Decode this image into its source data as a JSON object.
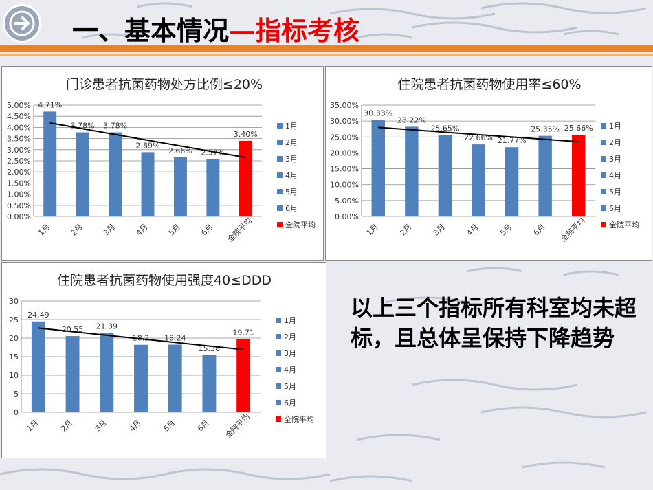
{
  "header": {
    "title_main": "一、基本情况",
    "title_accent": "—指标考核"
  },
  "nav": {
    "icon": "arrow-right-icon"
  },
  "summary_text": "以上三个指标所有科室均未超标，且总体呈保持下降趋势",
  "colors": {
    "bar": "#4f81bd",
    "avg_bar": "#ff0000",
    "accent": "#e8852b",
    "title_red": "#ee0000"
  },
  "chart_data": [
    {
      "type": "bar",
      "title": "门诊患者抗菌药物处方比例≤20%",
      "categories": [
        "1月",
        "2月",
        "3月",
        "4月",
        "5月",
        "6月",
        "全院平均"
      ],
      "values": [
        4.71,
        3.78,
        3.78,
        2.89,
        2.66,
        2.57,
        3.4
      ],
      "labels": [
        "4.71%",
        "3.78%",
        "3.78%",
        "2.89%",
        "2.66%",
        "2.57%",
        "3.40%"
      ],
      "ylim": [
        0,
        5
      ],
      "yticks": [
        "0.00%",
        "0.50%",
        "1.00%",
        "1.50%",
        "2.00%",
        "2.50%",
        "3.00%",
        "3.50%",
        "4.00%",
        "4.50%",
        "5.00%"
      ],
      "trend": [
        4.2,
        2.65
      ],
      "legend": [
        "1月",
        "2月",
        "3月",
        "4月",
        "5月",
        "6月",
        "全院平均"
      ],
      "legend_position": "right",
      "grid": true
    },
    {
      "type": "bar",
      "title": "住院患者抗菌药物使用率≤60%",
      "categories": [
        "1月",
        "2月",
        "3月",
        "4月",
        "5月",
        "6月",
        "全院平均"
      ],
      "values": [
        30.33,
        28.22,
        25.65,
        22.66,
        21.77,
        25.35,
        25.66
      ],
      "labels": [
        "30.33%",
        "28.22%",
        "25.65%",
        "22.66%",
        "21.77%",
        "25.35%",
        "25.66%"
      ],
      "ylim": [
        0,
        35
      ],
      "yticks": [
        "0.00%",
        "5.00%",
        "10.00%",
        "15.00%",
        "20.00%",
        "25.00%",
        "30.00%",
        "35.00%"
      ],
      "trend": [
        28.0,
        23.5
      ],
      "legend": [
        "1月",
        "2月",
        "3月",
        "4月",
        "5月",
        "6月",
        "全院平均"
      ],
      "legend_position": "right",
      "grid": true
    },
    {
      "type": "bar",
      "title": "住院患者抗菌药物使用强度40≤DDD",
      "categories": [
        "1月",
        "2月",
        "3月",
        "4月",
        "5月",
        "6月",
        "全院平均"
      ],
      "values": [
        24.49,
        20.55,
        21.39,
        18.2,
        18.24,
        15.38,
        19.71
      ],
      "labels": [
        "24.49",
        "20.55",
        "21.39",
        "18.2",
        "18.24",
        "15.38",
        "19.71"
      ],
      "ylim": [
        0,
        30
      ],
      "yticks": [
        "0",
        "5",
        "10",
        "15",
        "20",
        "25",
        "30"
      ],
      "trend": [
        22.7,
        16.9
      ],
      "legend": [
        "1月",
        "2月",
        "3月",
        "4月",
        "5月",
        "6月",
        "全院平均"
      ],
      "legend_position": "right",
      "grid": true
    }
  ]
}
